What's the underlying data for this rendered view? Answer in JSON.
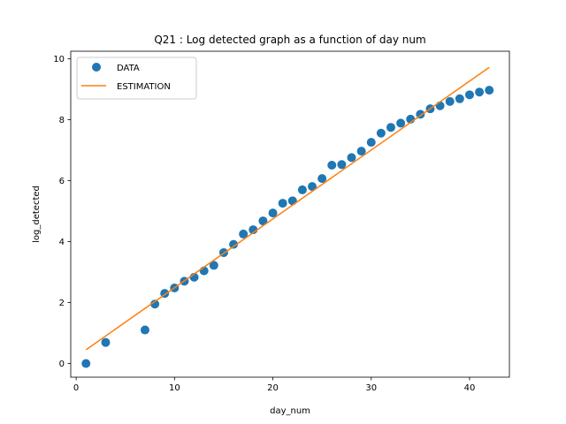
{
  "chart_data": {
    "type": "scatter",
    "title": "Q21 : Log detected graph as a function of day num",
    "xlabel": "day_num",
    "ylabel": "log_detected",
    "xlim": [
      -0.55,
      44.05
    ],
    "ylim": [
      -0.45,
      10.25
    ],
    "xticks": [
      0,
      10,
      20,
      30,
      40
    ],
    "yticks": [
      0,
      2,
      4,
      6,
      8,
      10
    ],
    "grid": false,
    "legend_position": "top-left",
    "series": [
      {
        "name": "DATA",
        "kind": "scatter",
        "color": "#1f77b4",
        "x": [
          1,
          3,
          7,
          8,
          9,
          10,
          11,
          12,
          13,
          14,
          15,
          16,
          17,
          18,
          19,
          20,
          21,
          22,
          23,
          24,
          25,
          26,
          27,
          28,
          29,
          30,
          31,
          32,
          33,
          34,
          35,
          36,
          37,
          38,
          39,
          40,
          41,
          42
        ],
        "y": [
          0.0,
          0.69,
          1.1,
          1.95,
          2.3,
          2.48,
          2.7,
          2.83,
          3.04,
          3.22,
          3.64,
          3.91,
          4.25,
          4.39,
          4.68,
          4.94,
          5.26,
          5.34,
          5.7,
          5.81,
          6.07,
          6.51,
          6.53,
          6.76,
          6.97,
          7.26,
          7.56,
          7.75,
          7.89,
          8.02,
          8.18,
          8.36,
          8.46,
          8.6,
          8.69,
          8.82,
          8.91,
          8.97
        ]
      },
      {
        "name": "ESTIMATION",
        "kind": "line",
        "color": "#ff7f0e",
        "x": [
          1,
          42
        ],
        "y": [
          0.45,
          9.72
        ]
      }
    ]
  }
}
